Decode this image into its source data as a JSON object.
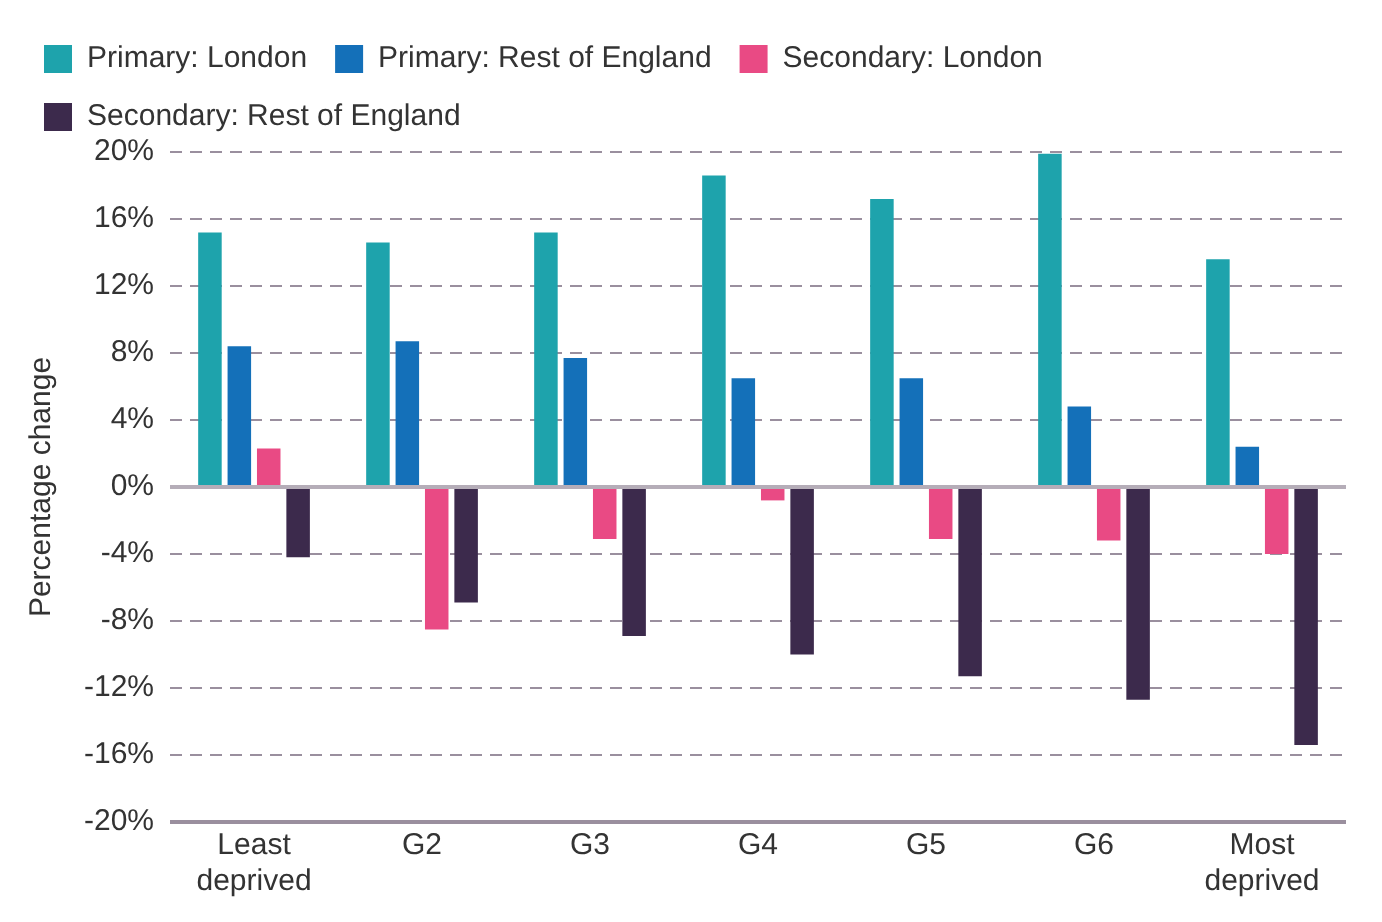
{
  "chart_data": {
    "type": "bar",
    "ylabel": "Percentage change",
    "categories": [
      "Least deprived",
      "G2",
      "G3",
      "G4",
      "G5",
      "G6",
      "Most deprived"
    ],
    "series": [
      {
        "name": "Primary: London",
        "color": "#1ea3ac",
        "values": [
          15.2,
          14.6,
          15.2,
          18.6,
          17.2,
          19.9,
          13.6
        ]
      },
      {
        "name": "Primary: Rest of England",
        "color": "#1470b9",
        "values": [
          8.4,
          8.7,
          7.7,
          6.5,
          6.5,
          4.8,
          2.4
        ]
      },
      {
        "name": "Secondary: London",
        "color": "#e94a84",
        "values": [
          2.3,
          -8.5,
          -3.1,
          -0.8,
          -3.1,
          -3.2,
          -4.0
        ]
      },
      {
        "name": "Secondary: Rest of England",
        "color": "#3c2a4c",
        "values": [
          -4.2,
          -6.9,
          -8.9,
          -10.0,
          -11.3,
          -12.7,
          -15.4
        ]
      }
    ],
    "ylim": [
      -20,
      20
    ],
    "yticks": [
      {
        "value": -20,
        "label": "-20%"
      },
      {
        "value": -16,
        "label": "-16%"
      },
      {
        "value": -12,
        "label": "-12%"
      },
      {
        "value": -8,
        "label": "-8%"
      },
      {
        "value": -4,
        "label": "-4%"
      },
      {
        "value": 0,
        "label": "0%"
      },
      {
        "value": 4,
        "label": "4%"
      },
      {
        "value": 8,
        "label": "8%"
      },
      {
        "value": 12,
        "label": "12%"
      },
      {
        "value": 16,
        "label": "16%"
      },
      {
        "value": 20,
        "label": "20%"
      }
    ],
    "grid": "y",
    "legend": "top"
  }
}
